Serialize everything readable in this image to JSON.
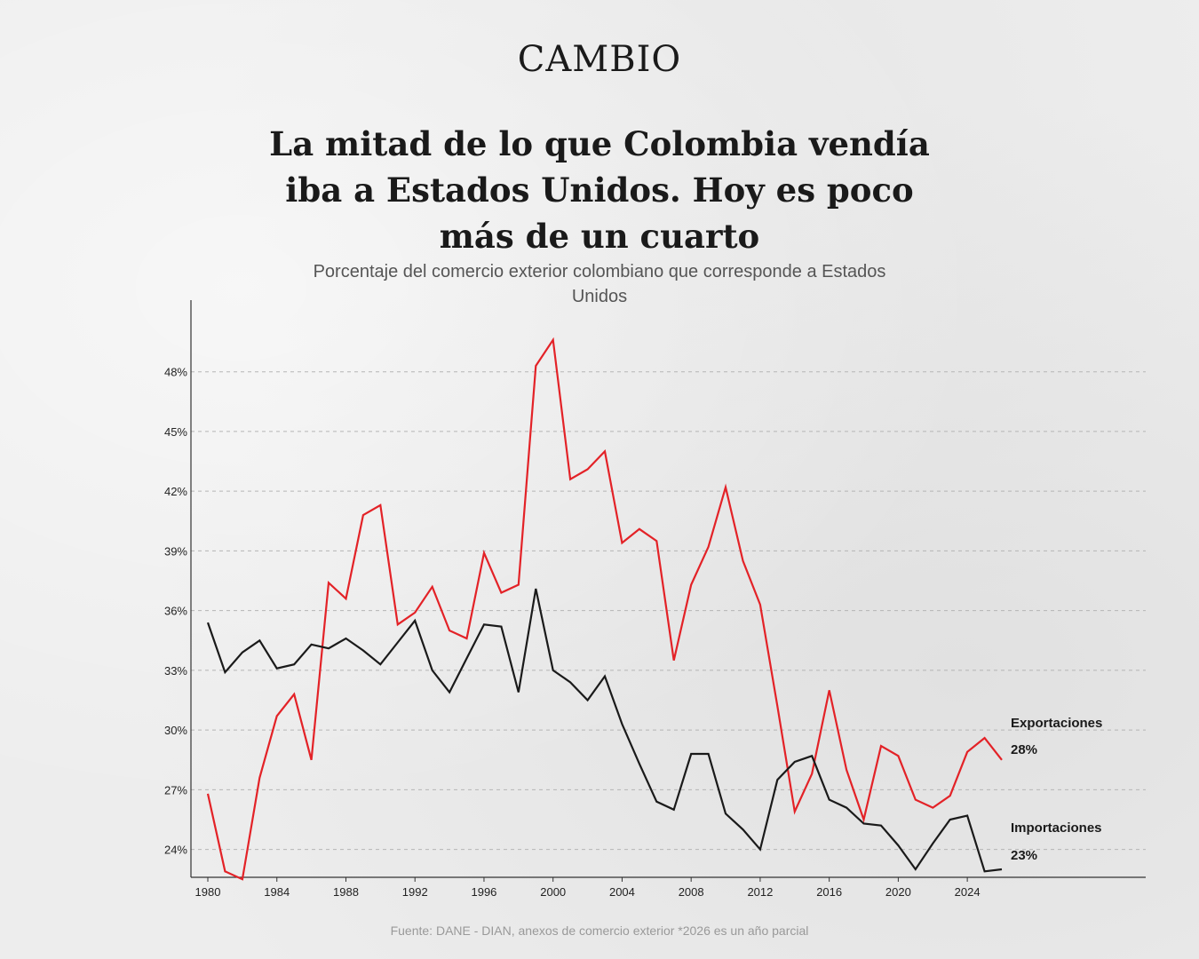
{
  "header": {
    "logo": "CAMBIO",
    "title": "La mitad de lo que Colombia vendía iba a Estados Unidos. Hoy es poco más de un cuarto",
    "subtitle": "Porcentaje del comercio exterior colombiano que corresponde a Estados Unidos"
  },
  "footer": {
    "source": "Fuente: DANE - DIAN, anexos de comercio exterior *2026 es un año parcial"
  },
  "chart_data": {
    "type": "line",
    "title": "La mitad de lo que Colombia vendía iba a Estados Unidos. Hoy es poco más de un cuarto",
    "subtitle": "Porcentaje del comercio exterior colombiano que corresponde a Estados Unidos",
    "xlabel": "",
    "ylabel": "",
    "xlim": [
      1980,
      2026
    ],
    "ylim": [
      22.6,
      51.6
    ],
    "grid": "horizontal dashed",
    "x_ticks": [
      "1980",
      "1984",
      "1988",
      "1992",
      "1996",
      "2000",
      "2004",
      "2008",
      "2012",
      "2016",
      "2020",
      "2024"
    ],
    "y_ticks": [
      "24%",
      "27%",
      "30%",
      "33%",
      "36%",
      "39%",
      "42%",
      "45%",
      "48%"
    ],
    "y_tick_values": [
      24,
      27,
      30,
      33,
      36,
      39,
      42,
      45,
      48
    ],
    "x": [
      1980,
      1981,
      1982,
      1983,
      1984,
      1985,
      1986,
      1987,
      1988,
      1989,
      1990,
      1991,
      1992,
      1993,
      1994,
      1995,
      1996,
      1997,
      1998,
      1999,
      2000,
      2001,
      2002,
      2003,
      2004,
      2005,
      2006,
      2007,
      2008,
      2009,
      2010,
      2011,
      2012,
      2013,
      2014,
      2015,
      2016,
      2017,
      2018,
      2019,
      2020,
      2021,
      2022,
      2023,
      2024,
      2025,
      2026
    ],
    "series": [
      {
        "key": "exportaciones",
        "name": "Exportaciones",
        "end_label": "28%",
        "color": "#e32227",
        "values": [
          26.8,
          22.9,
          22.5,
          27.6,
          30.7,
          31.8,
          28.5,
          37.4,
          36.6,
          40.8,
          41.3,
          35.3,
          35.9,
          37.2,
          35.0,
          34.6,
          38.9,
          36.9,
          37.3,
          48.3,
          49.6,
          42.6,
          43.1,
          44.0,
          39.4,
          40.1,
          39.5,
          33.5,
          37.3,
          39.2,
          42.2,
          38.5,
          36.3,
          31.2,
          25.9,
          27.8,
          32.0,
          28.0,
          25.5,
          29.2,
          28.7,
          26.5,
          26.1,
          26.7,
          28.9,
          29.6,
          28.5
        ]
      },
      {
        "key": "importaciones",
        "name": "Importaciones",
        "end_label": "23%",
        "color": "#1a1a1a",
        "values": [
          35.4,
          32.9,
          33.9,
          34.5,
          33.1,
          33.3,
          34.3,
          34.1,
          34.6,
          34.0,
          33.3,
          34.4,
          35.5,
          33.0,
          31.9,
          33.6,
          35.3,
          35.2,
          31.9,
          37.1,
          33.0,
          32.4,
          31.5,
          32.7,
          30.3,
          28.3,
          26.4,
          26.0,
          28.8,
          28.8,
          25.8,
          25.0,
          24.0,
          27.5,
          28.4,
          28.7,
          26.5,
          26.1,
          25.3,
          25.2,
          24.2,
          23.0,
          24.3,
          25.5,
          25.7,
          22.9,
          23.0
        ]
      }
    ]
  }
}
